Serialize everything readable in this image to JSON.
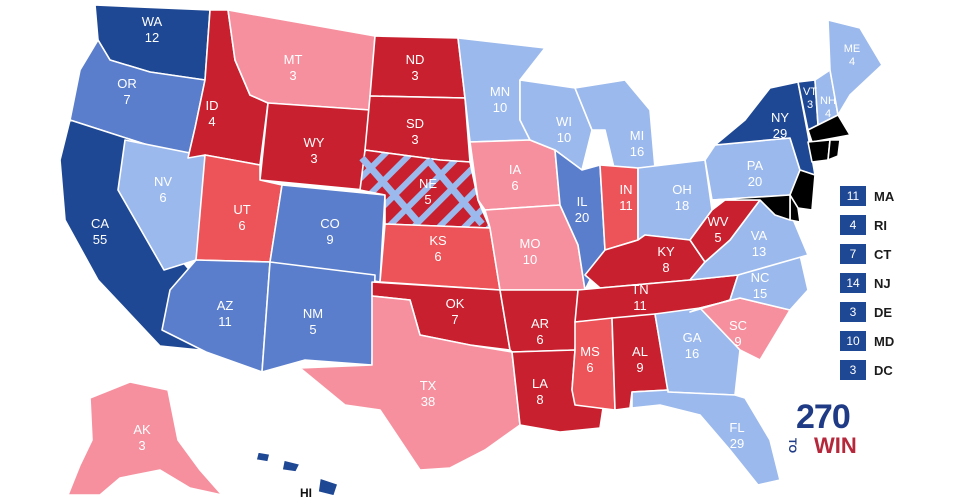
{
  "colors": {
    "safe_dem": "#1f4894",
    "likely_dem": "#5a7ecb",
    "lean_dem": "#9bb9ec",
    "lean_rep": "#f6909e",
    "likely_rep": "#ec5459",
    "safe_rep": "#c8202e"
  },
  "states": [
    {
      "abbr": "WA",
      "votes": "12",
      "rating": "safe_dem"
    },
    {
      "abbr": "OR",
      "votes": "7",
      "rating": "likely_dem"
    },
    {
      "abbr": "CA",
      "votes": "55",
      "rating": "safe_dem"
    },
    {
      "abbr": "NV",
      "votes": "6",
      "rating": "lean_dem"
    },
    {
      "abbr": "ID",
      "votes": "4",
      "rating": "safe_rep"
    },
    {
      "abbr": "MT",
      "votes": "3",
      "rating": "lean_rep"
    },
    {
      "abbr": "WY",
      "votes": "3",
      "rating": "safe_rep"
    },
    {
      "abbr": "UT",
      "votes": "6",
      "rating": "likely_rep"
    },
    {
      "abbr": "CO",
      "votes": "9",
      "rating": "likely_dem"
    },
    {
      "abbr": "AZ",
      "votes": "11",
      "rating": "likely_dem"
    },
    {
      "abbr": "NM",
      "votes": "5",
      "rating": "likely_dem"
    },
    {
      "abbr": "ND",
      "votes": "3",
      "rating": "safe_rep"
    },
    {
      "abbr": "SD",
      "votes": "3",
      "rating": "safe_rep"
    },
    {
      "abbr": "NE",
      "votes": "5",
      "rating": "safe_rep"
    },
    {
      "abbr": "KS",
      "votes": "6",
      "rating": "likely_rep"
    },
    {
      "abbr": "OK",
      "votes": "7",
      "rating": "safe_rep"
    },
    {
      "abbr": "TX",
      "votes": "38",
      "rating": "lean_rep"
    },
    {
      "abbr": "MN",
      "votes": "10",
      "rating": "lean_dem"
    },
    {
      "abbr": "IA",
      "votes": "6",
      "rating": "lean_rep"
    },
    {
      "abbr": "MO",
      "votes": "10",
      "rating": "lean_rep"
    },
    {
      "abbr": "AR",
      "votes": "6",
      "rating": "safe_rep"
    },
    {
      "abbr": "LA",
      "votes": "8",
      "rating": "safe_rep"
    },
    {
      "abbr": "WI",
      "votes": "10",
      "rating": "lean_dem"
    },
    {
      "abbr": "IL",
      "votes": "20",
      "rating": "likely_dem"
    },
    {
      "abbr": "MI",
      "votes": "16",
      "rating": "lean_dem"
    },
    {
      "abbr": "IN",
      "votes": "11",
      "rating": "likely_rep"
    },
    {
      "abbr": "OH",
      "votes": "18",
      "rating": "lean_dem"
    },
    {
      "abbr": "KY",
      "votes": "8",
      "rating": "safe_rep"
    },
    {
      "abbr": "TN",
      "votes": "11",
      "rating": "safe_rep"
    },
    {
      "abbr": "MS",
      "votes": "6",
      "rating": "likely_rep"
    },
    {
      "abbr": "AL",
      "votes": "9",
      "rating": "safe_rep"
    },
    {
      "abbr": "GA",
      "votes": "16",
      "rating": "lean_dem"
    },
    {
      "abbr": "FL",
      "votes": "29",
      "rating": "lean_dem"
    },
    {
      "abbr": "SC",
      "votes": "9",
      "rating": "lean_rep"
    },
    {
      "abbr": "NC",
      "votes": "15",
      "rating": "lean_dem"
    },
    {
      "abbr": "VA",
      "votes": "13",
      "rating": "lean_dem"
    },
    {
      "abbr": "WV",
      "votes": "5",
      "rating": "safe_rep"
    },
    {
      "abbr": "PA",
      "votes": "20",
      "rating": "lean_dem"
    },
    {
      "abbr": "NY",
      "votes": "29",
      "rating": "safe_dem"
    },
    {
      "abbr": "VT",
      "votes": "3",
      "rating": "safe_dem"
    },
    {
      "abbr": "NH",
      "votes": "4",
      "rating": "lean_dem"
    },
    {
      "abbr": "ME",
      "votes": "4",
      "rating": "lean_dem"
    },
    {
      "abbr": "AK",
      "votes": "3",
      "rating": "lean_rep"
    },
    {
      "abbr": "HI",
      "votes": "",
      "rating": "safe_dem"
    }
  ],
  "nebraska_districts_color": "#9bb9ec",
  "legend": [
    {
      "votes": "11",
      "state": "MA"
    },
    {
      "votes": "4",
      "state": "RI"
    },
    {
      "votes": "7",
      "state": "CT"
    },
    {
      "votes": "14",
      "state": "NJ"
    },
    {
      "votes": "3",
      "state": "DE"
    },
    {
      "votes": "10",
      "state": "MD"
    },
    {
      "votes": "3",
      "state": "DC"
    }
  ],
  "logo": {
    "number": "270",
    "to": "TO",
    "win": "WIN"
  },
  "hi_label": "HI"
}
